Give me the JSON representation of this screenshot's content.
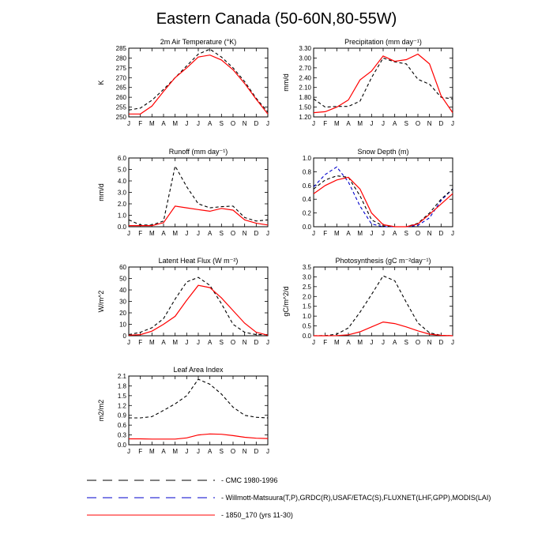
{
  "figure": {
    "title": "Eastern Canada (50-60N,80-55W)"
  },
  "months": [
    "J",
    "F",
    "M",
    "A",
    "M",
    "J",
    "J",
    "A",
    "S",
    "O",
    "N",
    "D",
    "J"
  ],
  "legend": [
    {
      "label": "CMC 1980-1996",
      "color": "#000000",
      "dash": "dashed"
    },
    {
      "label": "Willmott-Matsuura(T,P),GRDC(R),USAF/ETAC(S),FLUXNET(LHF,GPP),MODIS(LAI)",
      "color": "#0000cc",
      "dash": "dashed"
    },
    {
      "label": "1850_170 (yrs 11-30)",
      "color": "#ff0000",
      "dash": "solid"
    }
  ],
  "chart_data": [
    {
      "type": "line",
      "title": "2m Air Temperature (°K)",
      "ylabel": "K",
      "ylim": [
        250,
        285
      ],
      "yticks": [
        "250",
        "255",
        "260",
        "265",
        "270",
        "275",
        "280",
        "285"
      ],
      "x": [
        "J",
        "F",
        "M",
        "A",
        "M",
        "J",
        "J",
        "A",
        "S",
        "O",
        "N",
        "D",
        "J"
      ],
      "series": [
        {
          "style": "obs-black",
          "values": [
            253.5,
            254.5,
            258.5,
            264,
            270,
            276,
            282,
            284.5,
            280.5,
            275,
            268,
            259.5,
            252.5
          ]
        },
        {
          "style": "model-red",
          "values": [
            251.5,
            251.5,
            255.5,
            263,
            270,
            275,
            280.5,
            281.5,
            279,
            274,
            267,
            259,
            251.5
          ]
        }
      ]
    },
    {
      "type": "line",
      "title": "Precipitation (mm day⁻¹)",
      "ylabel": "mm/d",
      "ylim": [
        1.2,
        3.3
      ],
      "yticks": [
        "1.20",
        "1.50",
        "1.80",
        "2.10",
        "2.40",
        "2.70",
        "3.00",
        "3.30"
      ],
      "x": [
        "J",
        "F",
        "M",
        "A",
        "M",
        "J",
        "J",
        "A",
        "S",
        "O",
        "N",
        "D",
        "J"
      ],
      "series": [
        {
          "style": "obs-black",
          "values": [
            1.75,
            1.5,
            1.52,
            1.52,
            1.68,
            2.4,
            3.0,
            2.88,
            2.82,
            2.35,
            2.2,
            1.8,
            1.75
          ]
        },
        {
          "style": "model-red",
          "values": [
            1.33,
            1.36,
            1.5,
            1.72,
            2.33,
            2.6,
            3.06,
            2.9,
            2.95,
            3.12,
            2.82,
            1.85,
            1.33
          ]
        }
      ]
    },
    {
      "type": "line",
      "title": "Runoff (mm day⁻¹)",
      "ylabel": "mm/d",
      "ylim": [
        0,
        6
      ],
      "yticks": [
        "0.0",
        "1.0",
        "2.0",
        "3.0",
        "4.0",
        "5.0",
        "6.0"
      ],
      "x": [
        "J",
        "F",
        "M",
        "A",
        "M",
        "J",
        "J",
        "A",
        "S",
        "O",
        "N",
        "D",
        "J"
      ],
      "series": [
        {
          "style": "obs-black",
          "values": [
            0.6,
            0.15,
            0.15,
            0.5,
            5.3,
            3.5,
            2.0,
            1.65,
            1.75,
            1.8,
            0.8,
            0.5,
            0.6
          ]
        },
        {
          "style": "model-red",
          "values": [
            0.1,
            0.1,
            0.1,
            0.35,
            1.8,
            1.65,
            1.5,
            1.35,
            1.6,
            1.45,
            0.6,
            0.3,
            0.15
          ]
        }
      ]
    },
    {
      "type": "line",
      "title": "Snow Depth (m)",
      "ylabel": "",
      "ylim": [
        0,
        1
      ],
      "yticks": [
        "0.0",
        "0.2",
        "0.4",
        "0.6",
        "0.8",
        "1.0"
      ],
      "x": [
        "J",
        "F",
        "M",
        "A",
        "M",
        "J",
        "J",
        "A",
        "S",
        "O",
        "N",
        "D",
        "J"
      ],
      "series": [
        {
          "style": "obs-blue",
          "values": [
            0.58,
            0.76,
            0.87,
            0.65,
            0.3,
            0.04,
            0.0,
            0.0,
            0.0,
            0.02,
            0.13,
            0.38,
            0.55
          ]
        },
        {
          "style": "obs-black",
          "values": [
            0.55,
            0.68,
            0.74,
            0.72,
            0.45,
            0.1,
            0.01,
            0.0,
            0.0,
            0.05,
            0.2,
            0.4,
            0.55
          ]
        },
        {
          "style": "model-red",
          "values": [
            0.48,
            0.6,
            0.68,
            0.72,
            0.55,
            0.2,
            0.03,
            0.0,
            0.0,
            0.04,
            0.18,
            0.33,
            0.48
          ]
        }
      ]
    },
    {
      "type": "line",
      "title": "Latent Heat Flux (W m⁻²)",
      "ylabel": "W/m^2",
      "ylim": [
        0,
        60
      ],
      "yticks": [
        "0",
        "10",
        "20",
        "30",
        "40",
        "50",
        "60"
      ],
      "x": [
        "J",
        "F",
        "M",
        "A",
        "M",
        "J",
        "J",
        "A",
        "S",
        "O",
        "N",
        "D",
        "J"
      ],
      "series": [
        {
          "style": "obs-black",
          "values": [
            1,
            3,
            7,
            15,
            32,
            47,
            51,
            44,
            28,
            10,
            3,
            1,
            1
          ]
        },
        {
          "style": "model-red",
          "values": [
            0.5,
            1,
            4,
            10,
            17,
            31,
            44,
            42,
            33,
            22,
            11,
            3,
            0.5
          ]
        }
      ]
    },
    {
      "type": "line",
      "title": "Photosynthesis (gC m⁻²day⁻¹)",
      "ylabel": "gC/m^2/d",
      "ylim": [
        0,
        3.5
      ],
      "yticks": [
        "0.0",
        "0.5",
        "1.0",
        "1.5",
        "2.0",
        "2.5",
        "3.0",
        "3.5"
      ],
      "x": [
        "J",
        "F",
        "M",
        "A",
        "M",
        "J",
        "J",
        "A",
        "S",
        "O",
        "N",
        "D",
        "J"
      ],
      "series": [
        {
          "style": "obs-black",
          "values": [
            0.0,
            0.01,
            0.08,
            0.4,
            1.2,
            2.1,
            3.05,
            2.8,
            1.7,
            0.65,
            0.15,
            0.02,
            0.0
          ]
        },
        {
          "style": "model-red",
          "values": [
            0.0,
            0.0,
            0.01,
            0.05,
            0.2,
            0.45,
            0.7,
            0.62,
            0.45,
            0.25,
            0.08,
            0.02,
            0.0
          ]
        }
      ]
    },
    {
      "type": "line",
      "title": "Leaf Area Index",
      "ylabel": "m2/m2",
      "ylim": [
        0,
        2.1
      ],
      "yticks": [
        "0.0",
        "0.3",
        "0.6",
        "0.9",
        "1.2",
        "1.5",
        "1.8",
        "2.1"
      ],
      "x": [
        "J",
        "F",
        "M",
        "A",
        "M",
        "J",
        "J",
        "A",
        "S",
        "O",
        "N",
        "D",
        "J"
      ],
      "series": [
        {
          "style": "obs-black",
          "values": [
            0.82,
            0.82,
            0.86,
            1.05,
            1.25,
            1.5,
            2.0,
            1.85,
            1.55,
            1.15,
            0.9,
            0.84,
            0.82
          ]
        },
        {
          "style": "model-red",
          "values": [
            0.18,
            0.18,
            0.175,
            0.175,
            0.175,
            0.21,
            0.3,
            0.33,
            0.32,
            0.28,
            0.23,
            0.2,
            0.19
          ]
        }
      ]
    }
  ]
}
